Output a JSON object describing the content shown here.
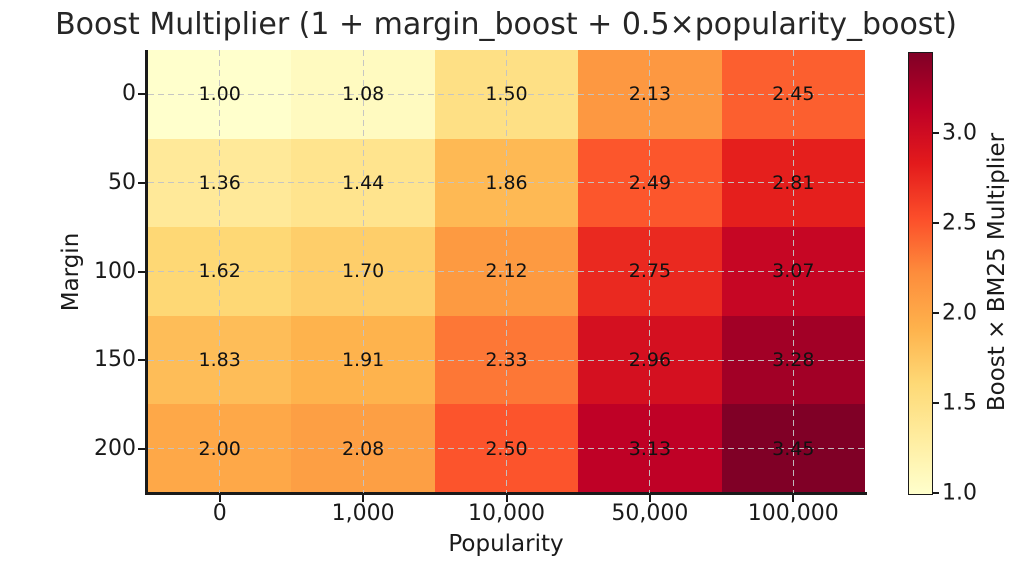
{
  "chart_data": {
    "type": "heatmap",
    "title": "Boost Multiplier (1 + margin_boost + 0.5×popularity_boost)",
    "xlabel": "Popularity",
    "ylabel": "Margin",
    "x_categories": [
      "0",
      "1,000",
      "10,000",
      "50,000",
      "100,000"
    ],
    "y_categories": [
      "0",
      "50",
      "100",
      "150",
      "200"
    ],
    "values": [
      [
        1.0,
        1.08,
        1.5,
        2.13,
        2.45
      ],
      [
        1.36,
        1.44,
        1.86,
        2.49,
        2.81
      ],
      [
        1.62,
        1.7,
        2.12,
        2.75,
        3.07
      ],
      [
        1.83,
        1.91,
        2.33,
        2.96,
        3.28
      ],
      [
        2.0,
        2.08,
        2.5,
        3.13,
        3.45
      ]
    ],
    "value_labels": [
      [
        "1.00",
        "1.08",
        "1.50",
        "2.13",
        "2.45"
      ],
      [
        "1.36",
        "1.44",
        "1.86",
        "2.49",
        "2.81"
      ],
      [
        "1.62",
        "1.70",
        "2.12",
        "2.75",
        "3.07"
      ],
      [
        "1.83",
        "1.91",
        "2.33",
        "2.96",
        "3.28"
      ],
      [
        "2.00",
        "2.08",
        "2.50",
        "3.13",
        "3.45"
      ]
    ],
    "cell_colors": [
      [
        "#FFFFCC",
        "#FFFAC0",
        "#FEE085",
        "#FD9841",
        "#FC5F2F"
      ],
      [
        "#FFE999",
        "#FFE48E",
        "#FEB954",
        "#FC562C",
        "#E51F1D"
      ],
      [
        "#FED875",
        "#FECE6A",
        "#FD9A41",
        "#EA2920",
        "#C60624"
      ],
      [
        "#FEBD58",
        "#FEB34D",
        "#FD7736",
        "#D41020",
        "#A20026"
      ],
      [
        "#FEA848",
        "#FD9F44",
        "#FC542C",
        "#BF0126",
        "#800026"
      ]
    ],
    "annotation_color": "#111111",
    "grid": true,
    "grid_style": "dashed",
    "colormap": "YlOrRd",
    "colorbar": {
      "label": "Boost × BM25 Multiplier",
      "vmin": 1.0,
      "vmax": 3.45,
      "ticks": [
        1.0,
        1.5,
        2.0,
        2.5,
        3.0
      ],
      "tick_labels": [
        "1.0",
        "1.5",
        "2.0",
        "2.5",
        "3.0"
      ],
      "gradient_bottom_to_top": [
        "#FFFFCC",
        "#FFEDA0",
        "#FED976",
        "#FEB24C",
        "#FD8D3C",
        "#FC4E2A",
        "#E31A1C",
        "#BD0026",
        "#800026"
      ]
    }
  }
}
